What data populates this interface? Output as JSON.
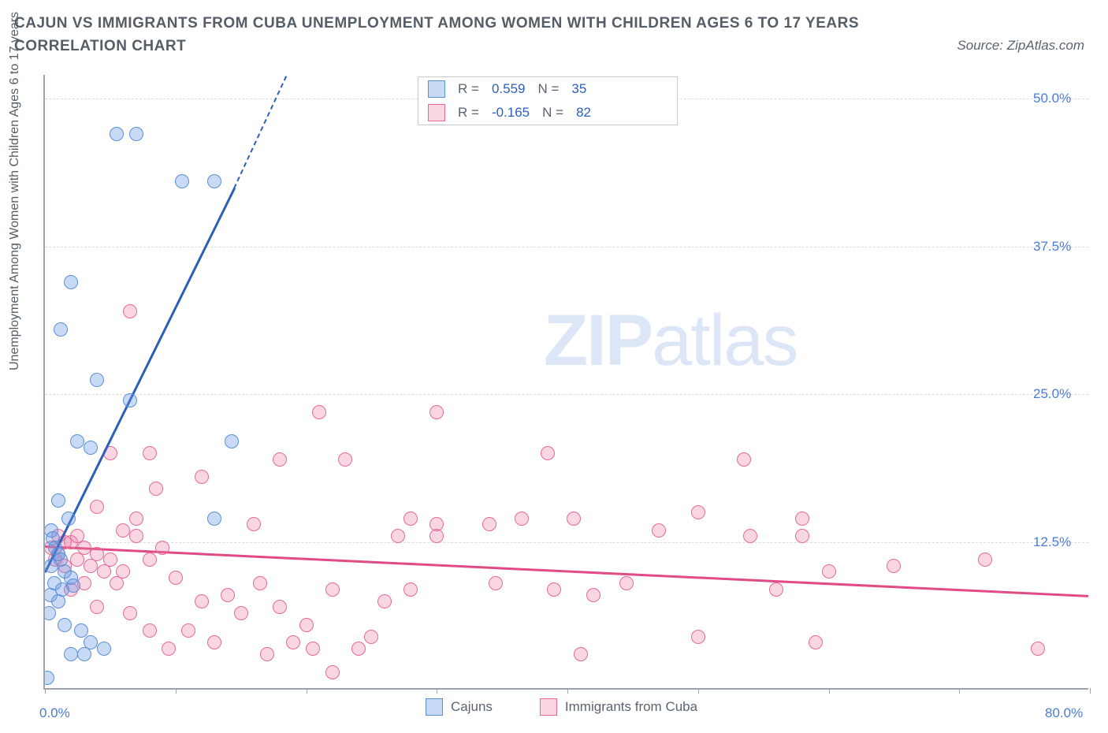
{
  "title": "CAJUN VS IMMIGRANTS FROM CUBA UNEMPLOYMENT AMONG WOMEN WITH CHILDREN AGES 6 TO 17 YEARS CORRELATION CHART",
  "source": "Source: ZipAtlas.com",
  "watermark_zip": "ZIP",
  "watermark_atlas": "atlas",
  "chart": {
    "type": "scatter",
    "xlim": [
      0,
      80
    ],
    "ylim": [
      0,
      52
    ],
    "yticks": [
      12.5,
      25.0,
      37.5,
      50.0
    ],
    "ytick_labels": [
      "12.5%",
      "25.0%",
      "37.5%",
      "50.0%"
    ],
    "xtick_positions": [
      0,
      10,
      20,
      30,
      40,
      50,
      60,
      70,
      80
    ],
    "xtick_label_min": "0.0%",
    "xtick_label_max": "80.0%",
    "ylabel": "Unemployment Among Women with Children Ages 6 to 17 years",
    "grid_color": "#d9dde3",
    "axis_color": "#9aa3af",
    "background_color": "#ffffff",
    "label_color": "#4b7bd6"
  },
  "series": {
    "cajuns": {
      "label": "Cajuns",
      "marker_fill": "rgba(99,148,230,0.35)",
      "marker_stroke": "#5a8fd8",
      "marker_size": 18,
      "trend_color": "#2b5fba",
      "trend": {
        "x1": 0,
        "y1": 10.0,
        "x2": 14.5,
        "y2": 42.5
      },
      "trend_dash": {
        "x1": 14.5,
        "y1": 42.5,
        "x2": 18.5,
        "y2": 52.0
      },
      "stats": {
        "r_label": "R =",
        "r_val": "0.559",
        "n_label": "N =",
        "n_val": "35"
      },
      "points": [
        [
          5.5,
          47.0
        ],
        [
          7.0,
          47.0
        ],
        [
          10.5,
          43.0
        ],
        [
          13.0,
          43.0
        ],
        [
          2.0,
          34.5
        ],
        [
          1.2,
          30.5
        ],
        [
          4.0,
          26.2
        ],
        [
          6.5,
          24.5
        ],
        [
          2.5,
          21.0
        ],
        [
          3.5,
          20.5
        ],
        [
          14.3,
          21.0
        ],
        [
          13.0,
          14.5
        ],
        [
          1.0,
          16.0
        ],
        [
          1.8,
          14.5
        ],
        [
          0.5,
          13.5
        ],
        [
          0.6,
          12.8
        ],
        [
          0.8,
          12.0
        ],
        [
          1.0,
          11.5
        ],
        [
          1.2,
          11.0
        ],
        [
          0.5,
          10.5
        ],
        [
          1.5,
          10.0
        ],
        [
          2.0,
          9.5
        ],
        [
          0.7,
          9.0
        ],
        [
          1.3,
          8.5
        ],
        [
          2.2,
          8.8
        ],
        [
          0.4,
          8.0
        ],
        [
          1.0,
          7.5
        ],
        [
          0.3,
          6.5
        ],
        [
          2.8,
          5.0
        ],
        [
          3.5,
          4.0
        ],
        [
          2.0,
          3.0
        ],
        [
          3.0,
          3.0
        ],
        [
          4.5,
          3.5
        ],
        [
          1.5,
          5.5
        ],
        [
          0.2,
          1.0
        ]
      ]
    },
    "cuba": {
      "label": "Immigrants from Cuba",
      "marker_fill": "rgba(235,120,160,0.30)",
      "marker_stroke": "#e56a98",
      "marker_size": 18,
      "trend_color": "#e04b86",
      "trend": {
        "x1": 0,
        "y1": 12.2,
        "x2": 80,
        "y2": 8.0
      },
      "stats": {
        "r_label": "R =",
        "r_val": "-0.165",
        "n_label": "N =",
        "n_val": "82"
      },
      "points": [
        [
          6.5,
          32.0
        ],
        [
          21.0,
          23.5
        ],
        [
          30.0,
          23.5
        ],
        [
          5.0,
          20.0
        ],
        [
          8.0,
          20.0
        ],
        [
          18.0,
          19.5
        ],
        [
          23.0,
          19.5
        ],
        [
          38.5,
          20.0
        ],
        [
          53.5,
          19.5
        ],
        [
          8.5,
          17.0
        ],
        [
          4.0,
          15.5
        ],
        [
          7.0,
          14.5
        ],
        [
          6.0,
          13.5
        ],
        [
          12.0,
          18.0
        ],
        [
          16.0,
          14.0
        ],
        [
          28.0,
          14.5
        ],
        [
          30.0,
          14.0
        ],
        [
          34.0,
          14.0
        ],
        [
          36.5,
          14.5
        ],
        [
          40.5,
          14.5
        ],
        [
          50.0,
          15.0
        ],
        [
          58.0,
          14.5
        ],
        [
          2.0,
          12.5
        ],
        [
          3.0,
          12.0
        ],
        [
          1.0,
          11.5
        ],
        [
          2.5,
          11.0
        ],
        [
          4.0,
          11.5
        ],
        [
          5.0,
          11.0
        ],
        [
          1.5,
          10.5
        ],
        [
          3.5,
          10.5
        ],
        [
          6.0,
          10.0
        ],
        [
          7.0,
          13.0
        ],
        [
          8.0,
          11.0
        ],
        [
          9.0,
          12.0
        ],
        [
          5.5,
          9.0
        ],
        [
          4.5,
          10.0
        ],
        [
          10.0,
          9.5
        ],
        [
          12.0,
          7.5
        ],
        [
          14.0,
          8.0
        ],
        [
          15.0,
          6.5
        ],
        [
          18.0,
          7.0
        ],
        [
          20.0,
          5.5
        ],
        [
          22.0,
          8.5
        ],
        [
          19.0,
          4.0
        ],
        [
          16.5,
          9.0
        ],
        [
          11.0,
          5.0
        ],
        [
          13.0,
          4.0
        ],
        [
          24.0,
          3.5
        ],
        [
          22.0,
          1.5
        ],
        [
          25.0,
          4.5
        ],
        [
          26.0,
          7.5
        ],
        [
          28.0,
          8.5
        ],
        [
          27.0,
          13.0
        ],
        [
          30.0,
          13.0
        ],
        [
          34.5,
          9.0
        ],
        [
          39.0,
          8.5
        ],
        [
          41.0,
          3.0
        ],
        [
          42.0,
          8.0
        ],
        [
          44.5,
          9.0
        ],
        [
          47.0,
          13.5
        ],
        [
          50.0,
          4.5
        ],
        [
          54.0,
          13.0
        ],
        [
          56.0,
          8.5
        ],
        [
          58.0,
          13.0
        ],
        [
          60.0,
          10.0
        ],
        [
          59.0,
          4.0
        ],
        [
          65.0,
          10.5
        ],
        [
          72.0,
          11.0
        ],
        [
          76.0,
          3.5
        ],
        [
          6.5,
          6.5
        ],
        [
          8.0,
          5.0
        ],
        [
          9.5,
          3.5
        ],
        [
          4.0,
          7.0
        ],
        [
          2.0,
          8.5
        ],
        [
          3.0,
          9.0
        ],
        [
          1.0,
          13.0
        ],
        [
          0.5,
          12.0
        ],
        [
          0.8,
          11.0
        ],
        [
          1.5,
          12.5
        ],
        [
          2.5,
          13.0
        ],
        [
          17.0,
          3.0
        ],
        [
          20.5,
          3.5
        ]
      ]
    }
  },
  "legend": {
    "cajuns_label": "Cajuns",
    "cuba_label": "Immigrants from Cuba"
  }
}
